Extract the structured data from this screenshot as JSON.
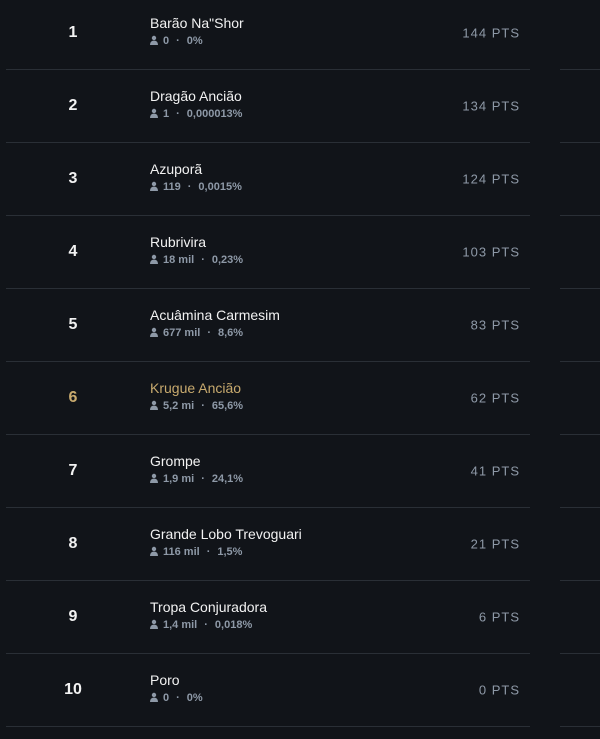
{
  "leaderboard": {
    "highlight_color": "#c8aa6e",
    "person_icon": "person-icon",
    "rows": [
      {
        "rank": "1",
        "name": "Barão Na\"Shor",
        "players": "0",
        "percent": "0%",
        "points": "144 PTS",
        "highlighted": false
      },
      {
        "rank": "2",
        "name": "Dragão Ancião",
        "players": "1",
        "percent": "0,000013%",
        "points": "134 PTS",
        "highlighted": false
      },
      {
        "rank": "3",
        "name": "Azuporã",
        "players": "119",
        "percent": "0,0015%",
        "points": "124 PTS",
        "highlighted": false
      },
      {
        "rank": "4",
        "name": "Rubrivira",
        "players": "18 mil",
        "percent": "0,23%",
        "points": "103 PTS",
        "highlighted": false
      },
      {
        "rank": "5",
        "name": "Acuâmina Carmesim",
        "players": "677 mil",
        "percent": "8,6%",
        "points": "83 PTS",
        "highlighted": false
      },
      {
        "rank": "6",
        "name": "Krugue Ancião",
        "players": "5,2 mi",
        "percent": "65,6%",
        "points": "62 PTS",
        "highlighted": true
      },
      {
        "rank": "7",
        "name": "Grompe",
        "players": "1,9 mi",
        "percent": "24,1%",
        "points": "41 PTS",
        "highlighted": false
      },
      {
        "rank": "8",
        "name": "Grande Lobo Trevoguari",
        "players": "116 mil",
        "percent": "1,5%",
        "points": "21 PTS",
        "highlighted": false
      },
      {
        "rank": "9",
        "name": "Tropa Conjuradora",
        "players": "1,4 mil",
        "percent": "0,018%",
        "points": "6 PTS",
        "highlighted": false
      },
      {
        "rank": "10",
        "name": "Poro",
        "players": "0",
        "percent": "0%",
        "points": "0 PTS",
        "highlighted": false
      }
    ],
    "separator": "·"
  }
}
